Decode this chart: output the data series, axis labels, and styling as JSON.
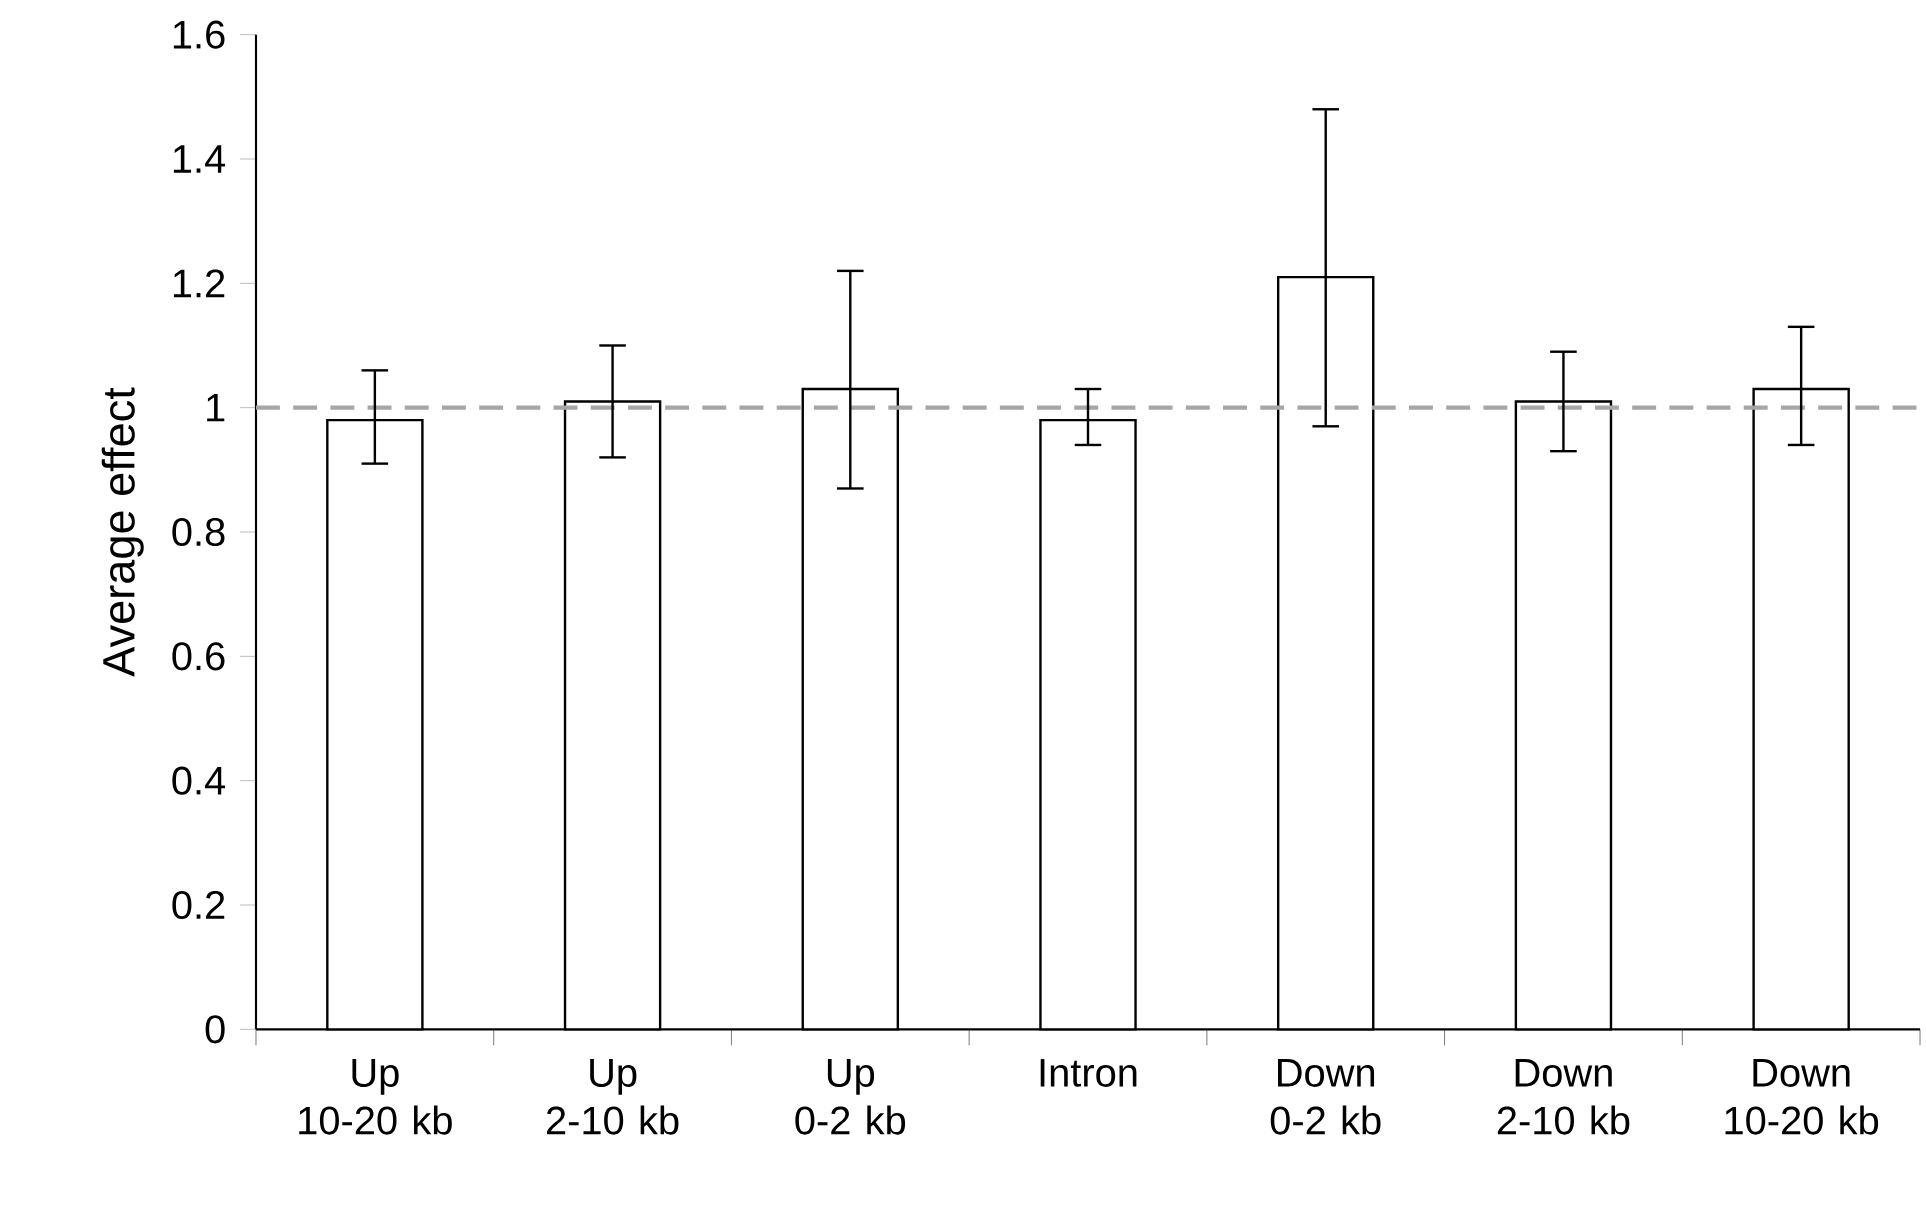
{
  "chart_data": {
    "type": "bar",
    "ylabel": "Average effect",
    "categories": [
      "Up 10-20 kb",
      "Up 2-10 kb",
      "Up 0-2 kb",
      "Intron",
      "Down 0-2 kb",
      "Down 2-10 kb",
      "Down 10-20 kb"
    ],
    "values": [
      0.98,
      1.01,
      1.03,
      0.98,
      1.21,
      1.01,
      1.03
    ],
    "errors": [
      [
        0.91,
        1.06
      ],
      [
        0.92,
        1.1
      ],
      [
        0.87,
        1.22
      ],
      [
        0.94,
        1.03
      ],
      [
        0.97,
        1.48
      ],
      [
        0.93,
        1.09
      ],
      [
        0.94,
        1.13
      ]
    ],
    "color": "#ffffff",
    "ylim": [
      0,
      1.6
    ],
    "yticks": [
      0,
      0.2,
      0.4,
      0.6,
      0.8,
      1,
      1.2,
      1.4,
      1.6
    ],
    "ref_lines": [
      {
        "axis": "y",
        "value": 1,
        "color": "#a6a6a6",
        "line_style": "dashed"
      }
    ],
    "grid": false
  }
}
